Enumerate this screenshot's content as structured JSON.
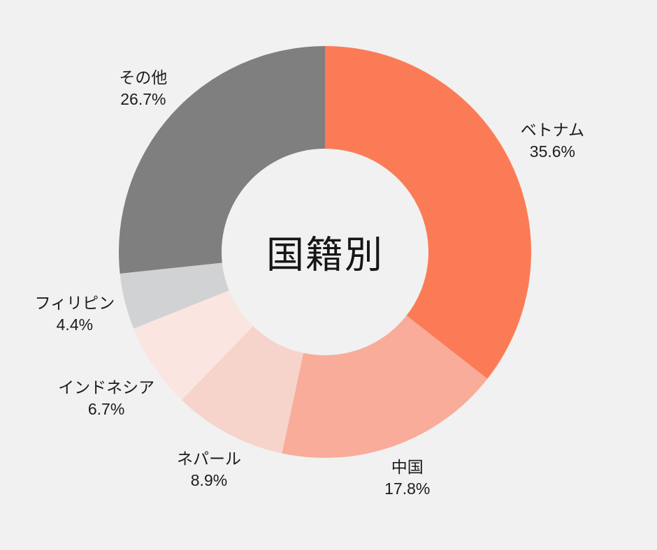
{
  "page": {
    "background": "#f0f1f0",
    "text_color": "#1c1c1c"
  },
  "chart_data": {
    "type": "pie",
    "title": "国籍別",
    "labels": [
      "ベトナム",
      "中国",
      "ネパール",
      "インドネシア",
      "フィリピン",
      "その他"
    ],
    "values": [
      35.6,
      17.8,
      8.9,
      6.7,
      4.4,
      26.7
    ],
    "unit": "%",
    "colors": [
      "#fc7b57",
      "#f8ac99",
      "#f6d3cb",
      "#fae5e1",
      "#d0d2d4",
      "#7f7f7f"
    ],
    "slugs": [
      "vietnam",
      "china",
      "nepal",
      "indonesia",
      "philippines",
      "others"
    ],
    "layout": {
      "donut": true,
      "legend": "none",
      "start_angle_deg": 0,
      "direction": "clockwise",
      "center": [
        465,
        361
      ],
      "outer_radius": 295,
      "inner_radius": 148,
      "label_radii": [
        362,
        345,
        353,
        377,
        369,
        350
      ],
      "label_format": "name newline percent",
      "hole_color": "#f0f1f0"
    }
  }
}
